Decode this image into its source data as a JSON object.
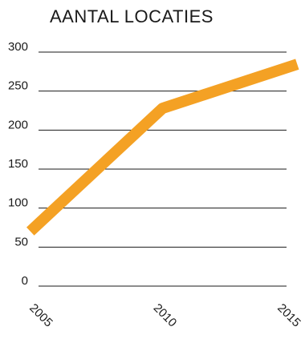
{
  "chart_data": {
    "type": "line",
    "title": "AANTAL LOCATIES",
    "xlabel": "",
    "ylabel": "",
    "x": [
      2005,
      2010,
      2015
    ],
    "x_tick_labels": [
      "2005",
      "2010",
      "2015"
    ],
    "y_tick_labels": [
      "300",
      "250",
      "200",
      "150",
      "100",
      "50",
      "0"
    ],
    "ylim": [
      0,
      300
    ],
    "grid": true,
    "series": [
      {
        "values": [
          80,
          228,
          280
        ],
        "color": "#f4a124"
      }
    ]
  }
}
